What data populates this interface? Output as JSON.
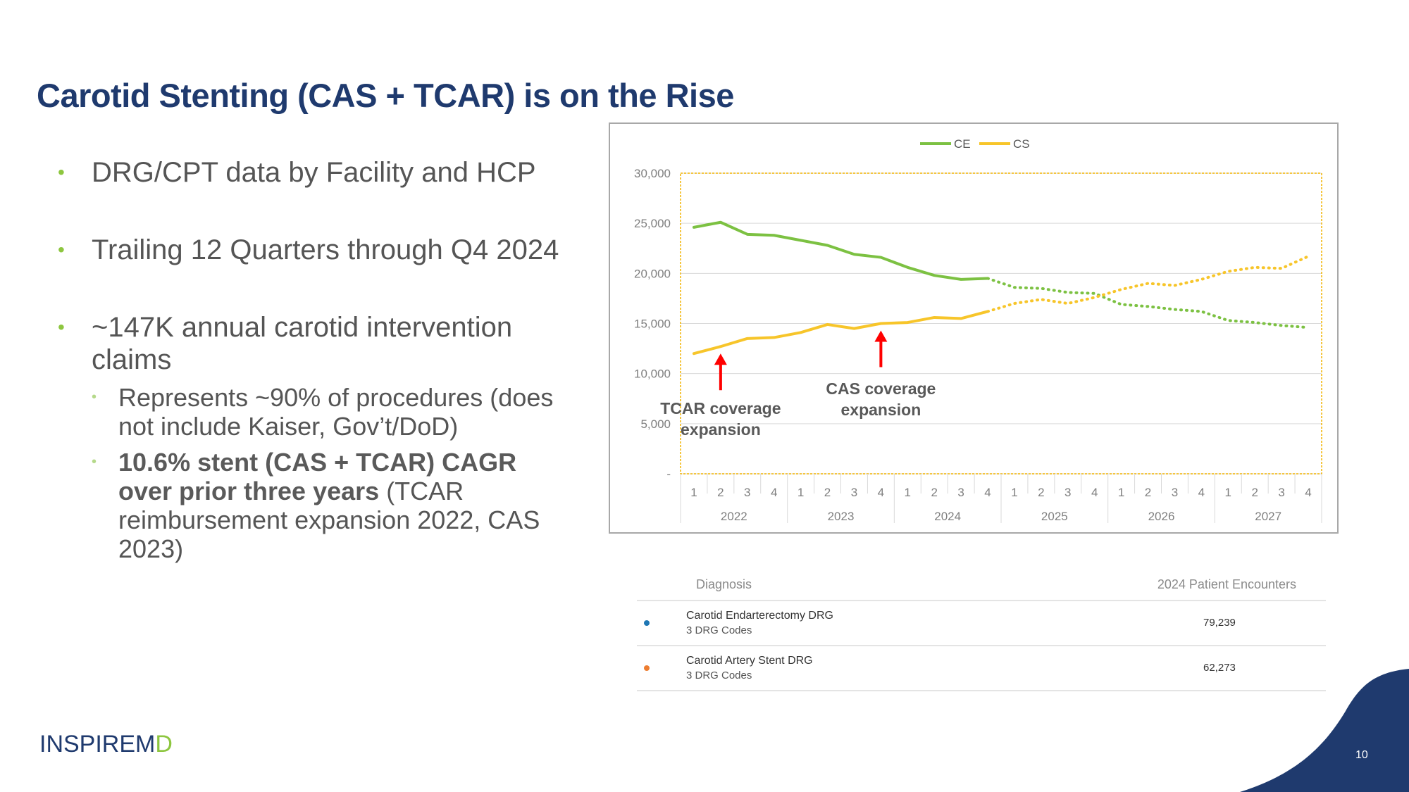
{
  "slide": {
    "title": "Carotid Stenting (CAS + TCAR) is on the Rise",
    "page_number": "10",
    "logo": {
      "part1": "INSPIRE",
      "part2": "M",
      "part3": "D"
    },
    "accent_color": "#1f3a6e",
    "bullet_color": "#8dc63f"
  },
  "bullets": {
    "b1": "DRG/CPT data by Facility and HCP",
    "b2": "Trailing 12 Quarters through Q4 2024",
    "b3": "~147K annual carotid intervention claims",
    "sub1": "Represents ~90% of procedures (does not include Kaiser, Gov’t/DoD)",
    "sub2_bold": "10.6% stent (CAS + TCAR) CAGR over prior three years",
    "sub2_rest": " (TCAR reimbursement expansion 2022, CAS 2023)"
  },
  "chart_data": {
    "type": "line",
    "legend_position": "top",
    "categories_quarter": [
      "1",
      "2",
      "3",
      "4",
      "1",
      "2",
      "3",
      "4",
      "1",
      "2",
      "3",
      "4",
      "1",
      "2",
      "3",
      "4",
      "1",
      "2",
      "3",
      "4",
      "1",
      "2",
      "3",
      "4"
    ],
    "categories_year": [
      "2022",
      "2023",
      "2024",
      "2025",
      "2026",
      "2027"
    ],
    "ylim": [
      0,
      30000
    ],
    "yticks": [
      "-",
      "5,000",
      "10,000",
      "15,000",
      "20,000",
      "25,000",
      "30,000"
    ],
    "grid": true,
    "actual_through_index": 11,
    "series": [
      {
        "name": "CE",
        "color": "#7cc142",
        "values": [
          24600,
          25100,
          23900,
          23800,
          23300,
          22800,
          21900,
          21600,
          20600,
          19800,
          19400,
          19500,
          18600,
          18500,
          18100,
          18000,
          16900,
          16700,
          16400,
          16200,
          15300,
          15100,
          14800,
          14600
        ]
      },
      {
        "name": "CS",
        "color": "#f7c52a",
        "values": [
          12000,
          12700,
          13500,
          13600,
          14100,
          14900,
          14500,
          15000,
          15100,
          15600,
          15500,
          16200,
          17000,
          17400,
          17000,
          17600,
          18400,
          19000,
          18800,
          19400,
          20200,
          20600,
          20500,
          21700
        ]
      }
    ],
    "annotations": [
      {
        "text": "TCAR coverage expansion",
        "index": 1
      },
      {
        "text": "CAS coverage expansion",
        "index": 7
      }
    ]
  },
  "table": {
    "col1": "Diagnosis",
    "col2": "2024 Patient Encounters",
    "rows": [
      {
        "name": "Carotid Endarterectomy DRG",
        "sub": "3 DRG Codes",
        "value": "79,239",
        "color": "#1f77b4"
      },
      {
        "name": "Carotid Artery Stent DRG",
        "sub": "3 DRG Codes",
        "value": "62,273",
        "color": "#ed7d31"
      }
    ]
  }
}
